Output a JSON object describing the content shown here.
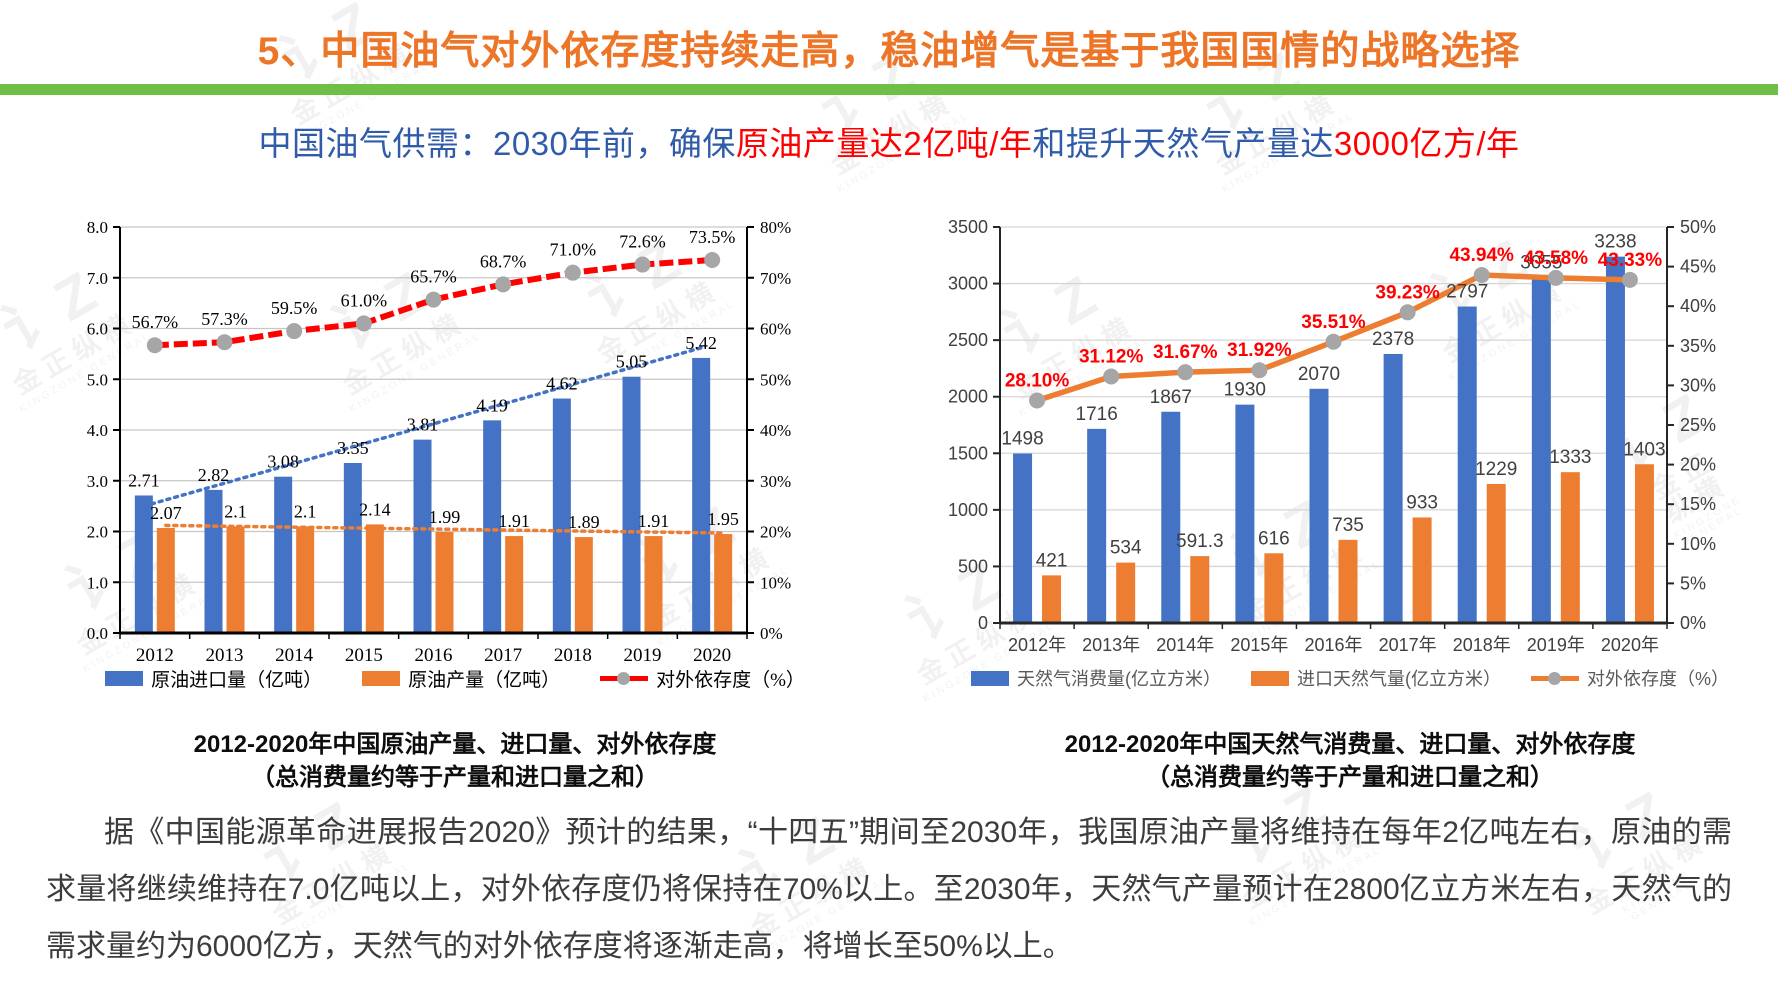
{
  "header": {
    "title": "5、中国油气对外依存度持续走高，稳油增气是基于我国国情的战略选择"
  },
  "theme": {
    "title_color": "#EC7528",
    "divider_green": "#6FBE45",
    "subtitle_blue": "#2F5BA9",
    "subtitle_red": "#FF0000",
    "bar_blue": "#4472C4",
    "bar_orange": "#ED7D31",
    "marker_gray": "#A6A6A6"
  },
  "subtitle": {
    "segments": [
      {
        "text": "中国油气供需：2030年前，确保",
        "color": "blue"
      },
      {
        "text": "原油产量达2亿吨/年",
        "color": "red"
      },
      {
        "text": "和提升天然气产量达",
        "color": "blue"
      },
      {
        "text": "3000亿方/年",
        "color": "red"
      }
    ]
  },
  "chart_data": [
    {
      "type": "bar+line",
      "title_caption": "2012-2020年中国原油产量、进口量、对外依存度",
      "subtitle_caption": "（总消费量约等于产量和进口量之和）",
      "categories": [
        "2012",
        "2013",
        "2014",
        "2015",
        "2016",
        "2017",
        "2018",
        "2019",
        "2020"
      ],
      "left_axis": {
        "min": 0,
        "max": 8,
        "step": 1,
        "decimals": 1
      },
      "right_axis": {
        "min": 0,
        "max": 80,
        "step": 10,
        "suffix": "%"
      },
      "grid": "on",
      "legend_position": "bottom",
      "bar_series": [
        {
          "name": "原油进口量（亿吨）",
          "color": "#4472C4",
          "values": [
            2.71,
            2.82,
            3.08,
            3.35,
            3.81,
            4.19,
            4.62,
            5.05,
            5.42
          ],
          "labels": [
            "2.71",
            "2.82",
            "3.08",
            "3.35",
            "3.81",
            "4.19",
            "4.62",
            "5.05",
            "5.42"
          ],
          "trendline": {
            "start": 2.5,
            "end": 5.62
          }
        },
        {
          "name": "原油产量（亿吨）",
          "color": "#ED7D31",
          "values": [
            2.07,
            2.1,
            2.1,
            2.14,
            1.99,
            1.91,
            1.89,
            1.91,
            1.95
          ],
          "labels": [
            "2.07",
            "2.1",
            "2.1",
            "2.14",
            "1.99",
            "1.91",
            "1.89",
            "1.91",
            "1.95"
          ],
          "trendline": {
            "start": 2.12,
            "end": 1.97
          }
        }
      ],
      "line_series": {
        "name": "对外依存度（%）",
        "color": "#FF0000",
        "marker_color": "#A6A6A6",
        "label_color": "#000000",
        "axis": "right",
        "values": [
          56.7,
          57.3,
          59.5,
          61.0,
          65.7,
          68.7,
          71.0,
          72.6,
          73.5
        ],
        "labels": [
          "56.7%",
          "57.3%",
          "59.5%",
          "61.0%",
          "65.7%",
          "68.7%",
          "71.0%",
          "72.6%",
          "73.5%"
        ]
      }
    },
    {
      "type": "bar+line",
      "title_caption": "2012-2020年中国天然气消费量、进口量、对外依存度",
      "subtitle_caption": "（总消费量约等于产量和进口量之和）",
      "categories": [
        "2012年",
        "2013年",
        "2014年",
        "2015年",
        "2016年",
        "2017年",
        "2018年",
        "2019年",
        "2020年"
      ],
      "left_axis": {
        "min": 0,
        "max": 3500,
        "step": 500,
        "decimals": 0
      },
      "right_axis": {
        "min": 0,
        "max": 50,
        "step": 5,
        "suffix": "%"
      },
      "grid": "on",
      "legend_position": "bottom",
      "bar_series": [
        {
          "name": "天然气消费量(亿立方米）",
          "color": "#4472C4",
          "values": [
            1498,
            1716,
            1867,
            1930,
            2070,
            2378,
            2797,
            3055,
            3238
          ],
          "labels": [
            "1498",
            "1716",
            "1867",
            "1930",
            "2070",
            "2378",
            "2797",
            "3055",
            "3238"
          ]
        },
        {
          "name": "进口天然气量(亿立方米）",
          "color": "#ED7D31",
          "values": [
            421,
            534,
            591.3,
            616,
            735,
            933,
            1229,
            1333,
            1403
          ],
          "labels": [
            "421",
            "534",
            "591.3",
            "616",
            "735",
            "933",
            "1229",
            "1333",
            "1403"
          ]
        }
      ],
      "line_series": {
        "name": "对外依存度（%）",
        "color": "#ED7D31",
        "marker_color": "#A6A6A6",
        "label_color": "#FF0000",
        "axis": "right",
        "values": [
          28.1,
          31.12,
          31.67,
          31.92,
          35.51,
          39.23,
          43.94,
          43.58,
          43.33
        ],
        "labels": [
          "28.10%",
          "31.12%",
          "31.67%",
          "31.92%",
          "35.51%",
          "39.23%",
          "43.94%",
          "43.58%",
          "43.33%"
        ]
      }
    }
  ],
  "paragraph": {
    "text": "据《中国能源革命进展报告2020》预计的结果，“十四五”期间至2030年，我国原油产量将维持在每年2亿吨左右，原油的需求量将继续维持在7.0亿吨以上，对外依存度仍将保持在70%以上。至2030年，天然气产量预计在2800亿立方米左右，天然气的需求量约为6000亿方，天然气的对外依存度将逐渐走高，将增长至50%以上。"
  },
  "watermark": {
    "logo_text": "讠Z",
    "name": "金正纵横",
    "sub": "KINGZONE GENERAL"
  }
}
